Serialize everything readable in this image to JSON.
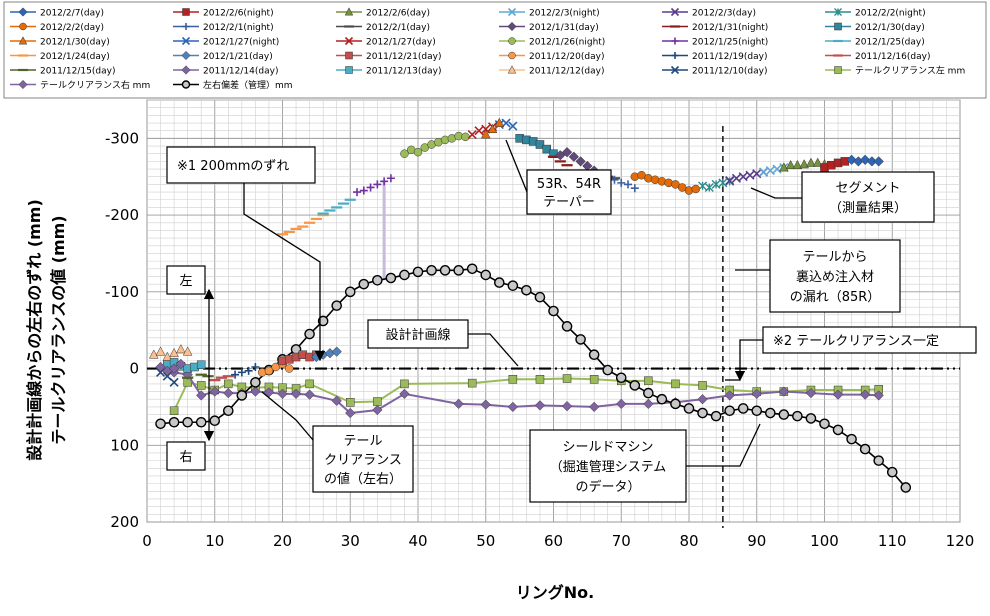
{
  "chart_data": {
    "type": "scatter",
    "title": "",
    "xlabel": "リングNo.",
    "ylabel_lines": [
      "設計計画線からの左右のずれ (mm)",
      "テールクリアランスの値 (mm)"
    ],
    "xlim": [
      0,
      120
    ],
    "ylim": [
      200,
      -350
    ],
    "x_ticks": [
      0,
      10,
      20,
      30,
      40,
      50,
      60,
      70,
      80,
      90,
      100,
      110,
      120
    ],
    "y_ticks": [
      {
        "value": -300,
        "label": "-300"
      },
      {
        "value": -200,
        "label": "-200"
      },
      {
        "value": -100,
        "label": "-100"
      },
      {
        "value": 0,
        "label": "0"
      },
      {
        "value": 100,
        "label": "100"
      },
      {
        "value": 200,
        "label": "200"
      }
    ],
    "grid": true,
    "legend_position": "top",
    "legend": [
      {
        "name": "2012/2/7(day)",
        "color": "#2E64B5",
        "marker": "diamond"
      },
      {
        "name": "2012/2/6(night)",
        "color": "#B22222",
        "marker": "square"
      },
      {
        "name": "2012/2/6(day)",
        "color": "#76923C",
        "marker": "triangle"
      },
      {
        "name": "2012/2/3(night)",
        "color": "#5FA8D3",
        "marker": "x"
      },
      {
        "name": "2012/2/3(day)",
        "color": "#5A3C8C",
        "marker": "x"
      },
      {
        "name": "2012/2/2(night)",
        "color": "#2E8B8B",
        "marker": "star"
      },
      {
        "name": "2012/2/2(day)",
        "color": "#E36C09",
        "marker": "circle"
      },
      {
        "name": "2012/2/1(night)",
        "color": "#3B5EA0",
        "marker": "plus"
      },
      {
        "name": "2012/2/1(day)",
        "color": "#4A4A4A",
        "marker": "dash"
      },
      {
        "name": "2012/1/31(day)",
        "color": "#604A7B",
        "marker": "diamond"
      },
      {
        "name": "2012/1/31(night)",
        "color": "#8B1A1A",
        "marker": "dash"
      },
      {
        "name": "2012/1/30(day)",
        "color": "#31859C",
        "marker": "square"
      },
      {
        "name": "2012/1/30(day)",
        "color": "#E36C09",
        "marker": "triangle"
      },
      {
        "name": "2012/1/27(night)",
        "color": "#2E64B5",
        "marker": "x"
      },
      {
        "name": "2012/1/27(day)",
        "color": "#B22222",
        "marker": "x"
      },
      {
        "name": "2012/1/26(night)",
        "color": "#9BBB59",
        "marker": "circle"
      },
      {
        "name": "2012/1/25(night)",
        "color": "#7030A0",
        "marker": "plus"
      },
      {
        "name": "2012/1/25(day)",
        "color": "#4BACC6",
        "marker": "dash"
      },
      {
        "name": "2012/1/24(day)",
        "color": "#F79646",
        "marker": "dash"
      },
      {
        "name": "2012/1/21(day)",
        "color": "#4F81BD",
        "marker": "diamond"
      },
      {
        "name": "2011/12/21(day)",
        "color": "#C0504D",
        "marker": "square"
      },
      {
        "name": "2011/12/20(day)",
        "color": "#F79646",
        "marker": "circle"
      },
      {
        "name": "2011/12/19(day)",
        "color": "#1F497D",
        "marker": "plus"
      },
      {
        "name": "2011/12/16(day)",
        "color": "#C0504D",
        "marker": "dash"
      },
      {
        "name": "2011/12/15(day)",
        "color": "#4F6228",
        "marker": "dash"
      },
      {
        "name": "2011/12/14(day)",
        "color": "#8064A2",
        "marker": "diamond"
      },
      {
        "name": "2011/12/13(day)",
        "color": "#4BACC6",
        "marker": "square"
      },
      {
        "name": "2011/12/12(day)",
        "color": "#FAC090",
        "marker": "triangle"
      },
      {
        "name": "2011/12/10(day)",
        "color": "#1F497D",
        "marker": "x"
      },
      {
        "name": "テールクリアランス左 mm",
        "color": "#9BBB59",
        "marker": "square"
      },
      {
        "name": "テールクリアランス右 mm",
        "color": "#8064A2",
        "marker": "diamond"
      },
      {
        "name": "左右偏差（管理）mm",
        "color": "#000000",
        "marker": "circle"
      }
    ],
    "series": [
      {
        "name": "テールクリアランス左 mm",
        "color": "#9BBB59",
        "marker": "square",
        "line": true,
        "x": [
          4,
          6,
          8,
          10,
          12,
          14,
          16,
          18,
          20,
          22,
          24,
          30,
          34,
          38,
          48,
          54,
          58,
          62,
          66,
          70,
          74,
          78,
          82,
          86,
          90,
          94,
          98,
          102,
          106,
          108
        ],
        "y": [
          55,
          18,
          22,
          28,
          20,
          24,
          25,
          24,
          25,
          26,
          20,
          44,
          43,
          20,
          19,
          14,
          14,
          13,
          14,
          16,
          16,
          20,
          22,
          28,
          30,
          30,
          28,
          28,
          28,
          27
        ]
      },
      {
        "name": "テールクリアランス右 mm",
        "color": "#8064A2",
        "marker": "diamond",
        "line": true,
        "x": [
          4,
          6,
          8,
          10,
          12,
          14,
          16,
          18,
          20,
          22,
          24,
          28,
          30,
          34,
          38,
          46,
          50,
          54,
          58,
          62,
          66,
          70,
          74,
          78,
          82,
          86,
          90,
          94,
          98,
          102,
          106,
          108
        ],
        "y": [
          5,
          8,
          35,
          30,
          32,
          32,
          30,
          31,
          33,
          33,
          34,
          42,
          58,
          54,
          33,
          46,
          47,
          50,
          48,
          49,
          50,
          46,
          46,
          44,
          40,
          35,
          33,
          30,
          32,
          34,
          34,
          35
        ]
      },
      {
        "name": "左右偏差（管理）mm",
        "color": "#000000",
        "marker": "circle",
        "line": true,
        "x": [
          2,
          4,
          6,
          8,
          10,
          12,
          14,
          16,
          18,
          20,
          22,
          24,
          26,
          28,
          30,
          32,
          34,
          36,
          38,
          40,
          42,
          44,
          46,
          48,
          50,
          52,
          54,
          56,
          58,
          60,
          62,
          64,
          66,
          68,
          70,
          72,
          74,
          76,
          78,
          80,
          82,
          84,
          86,
          88,
          90,
          92,
          94,
          96,
          98,
          100,
          102,
          104,
          106,
          108,
          110,
          112
        ],
        "y": [
          72,
          70,
          70,
          70,
          68,
          55,
          35,
          18,
          2,
          -12,
          -25,
          -45,
          -62,
          -82,
          -100,
          -110,
          -115,
          -118,
          -122,
          -126,
          -128,
          -128,
          -128,
          -130,
          -122,
          -112,
          -108,
          -102,
          -93,
          -75,
          -55,
          -38,
          -18,
          2,
          12,
          22,
          32,
          40,
          46,
          52,
          58,
          62,
          55,
          52,
          55,
          58,
          60,
          62,
          65,
          72,
          80,
          92,
          105,
          120,
          135,
          155
        ]
      },
      {
        "name": "2011/12/10(day)",
        "color": "#1F497D",
        "marker": "x",
        "x": [
          2,
          3,
          4
        ],
        "y": [
          5,
          10,
          18
        ]
      },
      {
        "name": "2011/12/12(day)",
        "color": "#FAC090",
        "marker": "triangle",
        "x": [
          1,
          2,
          3,
          4,
          5,
          6
        ],
        "y": [
          -18,
          -22,
          -15,
          -20,
          -25,
          -22
        ]
      },
      {
        "name": "2011/12/13(day)",
        "color": "#4BACC6",
        "marker": "square",
        "x": [
          3,
          4,
          5,
          6,
          7,
          8
        ],
        "y": [
          -5,
          -8,
          -3,
          0,
          -2,
          -5
        ]
      },
      {
        "name": "2011/12/14(day)",
        "color": "#8064A2",
        "marker": "diamond",
        "x": [
          2,
          3,
          4,
          5
        ],
        "y": [
          -2,
          3,
          0,
          -6
        ]
      },
      {
        "name": "2011/12/15(day)",
        "color": "#4F6228",
        "marker": "dash",
        "x": [
          6,
          8,
          9,
          10
        ],
        "y": [
          12,
          8,
          10,
          15
        ]
      },
      {
        "name": "2011/12/16(day)",
        "color": "#C0504D",
        "marker": "dash",
        "x": [
          10,
          11,
          12
        ],
        "y": [
          15,
          12,
          10
        ]
      },
      {
        "name": "2011/12/19(day)",
        "color": "#1F497D",
        "marker": "plus",
        "x": [
          13,
          14,
          15,
          16
        ],
        "y": [
          8,
          5,
          3,
          -2
        ]
      },
      {
        "name": "2011/12/20(day)",
        "color": "#F79646",
        "marker": "circle",
        "x": [
          17,
          18,
          19,
          20,
          21
        ],
        "y": [
          5,
          3,
          -2,
          -6,
          0
        ]
      },
      {
        "name": "2011/12/21(day)",
        "color": "#C0504D",
        "marker": "square",
        "x": [
          20,
          21,
          22,
          23,
          24,
          25
        ],
        "y": [
          -10,
          -12,
          -15,
          -18,
          -15,
          -18
        ]
      },
      {
        "name": "2012/1/21(day)",
        "color": "#4F81BD",
        "marker": "diamond",
        "x": [
          25,
          26,
          27,
          28
        ],
        "y": [
          -15,
          -18,
          -20,
          -22
        ]
      },
      {
        "name": "2012/1/24(day)",
        "color": "#F79646",
        "marker": "dash",
        "x": [
          20,
          21,
          22,
          23,
          24,
          25,
          26
        ],
        "y": [
          -175,
          -178,
          -182,
          -185,
          -190,
          -195,
          -200
        ]
      },
      {
        "name": "2012/1/25(day)",
        "color": "#4BACC6",
        "marker": "dash",
        "x": [
          26,
          27,
          28,
          29,
          30
        ],
        "y": [
          -202,
          -206,
          -210,
          -215,
          -220
        ]
      },
      {
        "name": "2012/1/25(night)",
        "color": "#7030A0",
        "marker": "plus",
        "x": [
          31,
          32,
          33,
          34,
          35,
          36
        ],
        "y": [
          -230,
          -232,
          -236,
          -240,
          -244,
          -248
        ]
      },
      {
        "name": "2012/1/26(night)",
        "color": "#9BBB59",
        "marker": "circle",
        "x": [
          38,
          39,
          40,
          41,
          42,
          43,
          44,
          45,
          46,
          47
        ],
        "y": [
          -280,
          -285,
          -282,
          -288,
          -292,
          -295,
          -298,
          -300,
          -303,
          -302
        ]
      },
      {
        "name": "2012/1/27(day)",
        "color": "#B22222",
        "marker": "x",
        "x": [
          48,
          49,
          50,
          51
        ],
        "y": [
          -305,
          -310,
          -312,
          -315
        ]
      },
      {
        "name": "2012/1/27(night)",
        "color": "#2E64B5",
        "marker": "x",
        "x": [
          52,
          53,
          54
        ],
        "y": [
          -318,
          -320,
          -316
        ]
      },
      {
        "name": "2012/1/30(day)",
        "color": "#E36C09",
        "marker": "triangle",
        "x": [
          50,
          51,
          52
        ],
        "y": [
          -305,
          -312,
          -320
        ]
      },
      {
        "name": "2012/1/30(day) ",
        "color": "#31859C",
        "marker": "square",
        "x": [
          55,
          56,
          57,
          58,
          59,
          60
        ],
        "y": [
          -300,
          -298,
          -296,
          -292,
          -286,
          -280
        ]
      },
      {
        "name": "2012/1/31(night)",
        "color": "#8B1A1A",
        "marker": "dash",
        "x": [
          60,
          61,
          62
        ],
        "y": [
          -276,
          -270,
          -265
        ]
      },
      {
        "name": "2012/1/31(day)",
        "color": "#604A7B",
        "marker": "diamond",
        "x": [
          61,
          62,
          63,
          64,
          65,
          66
        ],
        "y": [
          -278,
          -282,
          -276,
          -270,
          -264,
          -258
        ]
      },
      {
        "name": "2012/2/1(day)",
        "color": "#4A4A4A",
        "marker": "dash",
        "x": [
          67,
          68,
          69
        ],
        "y": [
          -255,
          -250,
          -248
        ]
      },
      {
        "name": "2012/2/1(night)",
        "color": "#3B5EA0",
        "marker": "plus",
        "x": [
          69,
          70,
          71,
          72
        ],
        "y": [
          -246,
          -242,
          -240,
          -235
        ]
      },
      {
        "name": "2012/2/2(day)",
        "color": "#E36C09",
        "marker": "circle",
        "x": [
          72,
          73,
          74,
          75,
          76,
          77,
          78,
          79,
          80,
          81
        ],
        "y": [
          -250,
          -252,
          -248,
          -246,
          -244,
          -242,
          -240,
          -236,
          -232,
          -234
        ]
      },
      {
        "name": "2012/2/2(night)",
        "color": "#2E8B8B",
        "marker": "star",
        "x": [
          82,
          83,
          84,
          85,
          86
        ],
        "y": [
          -238,
          -236,
          -240,
          -242,
          -244
        ]
      },
      {
        "name": "2012/2/3(day)",
        "color": "#5A3C8C",
        "marker": "x",
        "x": [
          86,
          87,
          88,
          89,
          90,
          91
        ],
        "y": [
          -245,
          -248,
          -250,
          -252,
          -254,
          -256
        ]
      },
      {
        "name": "2012/2/3(night)",
        "color": "#5FA8D3",
        "marker": "x",
        "x": [
          91,
          92,
          93,
          94
        ],
        "y": [
          -256,
          -258,
          -260,
          -262
        ]
      },
      {
        "name": "2012/2/6(day)",
        "color": "#76923C",
        "marker": "triangle",
        "x": [
          94,
          95,
          96,
          97,
          98,
          99,
          100
        ],
        "y": [
          -262,
          -265,
          -265,
          -266,
          -268,
          -268,
          -266
        ]
      },
      {
        "name": "2012/2/6(night)",
        "color": "#B22222",
        "marker": "square",
        "x": [
          100,
          101,
          102,
          103
        ],
        "y": [
          -262,
          -265,
          -268,
          -270
        ]
      },
      {
        "name": "2012/2/7(day)",
        "color": "#2E64B5",
        "marker": "diamond",
        "x": [
          104,
          105,
          106,
          107,
          108
        ],
        "y": [
          -272,
          -270,
          -272,
          -270,
          -270
        ]
      }
    ],
    "reference_lines": [
      {
        "name": "design-plan-line",
        "type": "horizontal",
        "y": 0,
        "style": "dash-dot"
      },
      {
        "name": "ring-85-marker",
        "type": "vertical",
        "x": 85,
        "style": "dashed"
      }
    ],
    "annotations": [
      {
        "name": "note-200mm-shift",
        "text": "※1  200mmのずれ"
      },
      {
        "name": "note-53r-54r",
        "lines": [
          "53R、54R",
          "テーパー"
        ]
      },
      {
        "name": "note-segment",
        "lines": [
          "セグメント",
          "（測量結果）"
        ]
      },
      {
        "name": "note-leak",
        "lines": [
          "テールから",
          "裏込め注入材",
          "の漏れ（85R）"
        ]
      },
      {
        "name": "note-left",
        "text": "左"
      },
      {
        "name": "note-right",
        "text": "右"
      },
      {
        "name": "note-design-line",
        "text": "設計計画線"
      },
      {
        "name": "note-tail-constant",
        "text": "※2  テールクリアランス一定"
      },
      {
        "name": "note-tail-clearance",
        "lines": [
          "テール",
          "クリアランス",
          "の値（左右）"
        ]
      },
      {
        "name": "note-shield-machine",
        "lines": [
          "シールドマシン",
          "（掘進管理システム",
          "のデータ）"
        ]
      }
    ]
  }
}
